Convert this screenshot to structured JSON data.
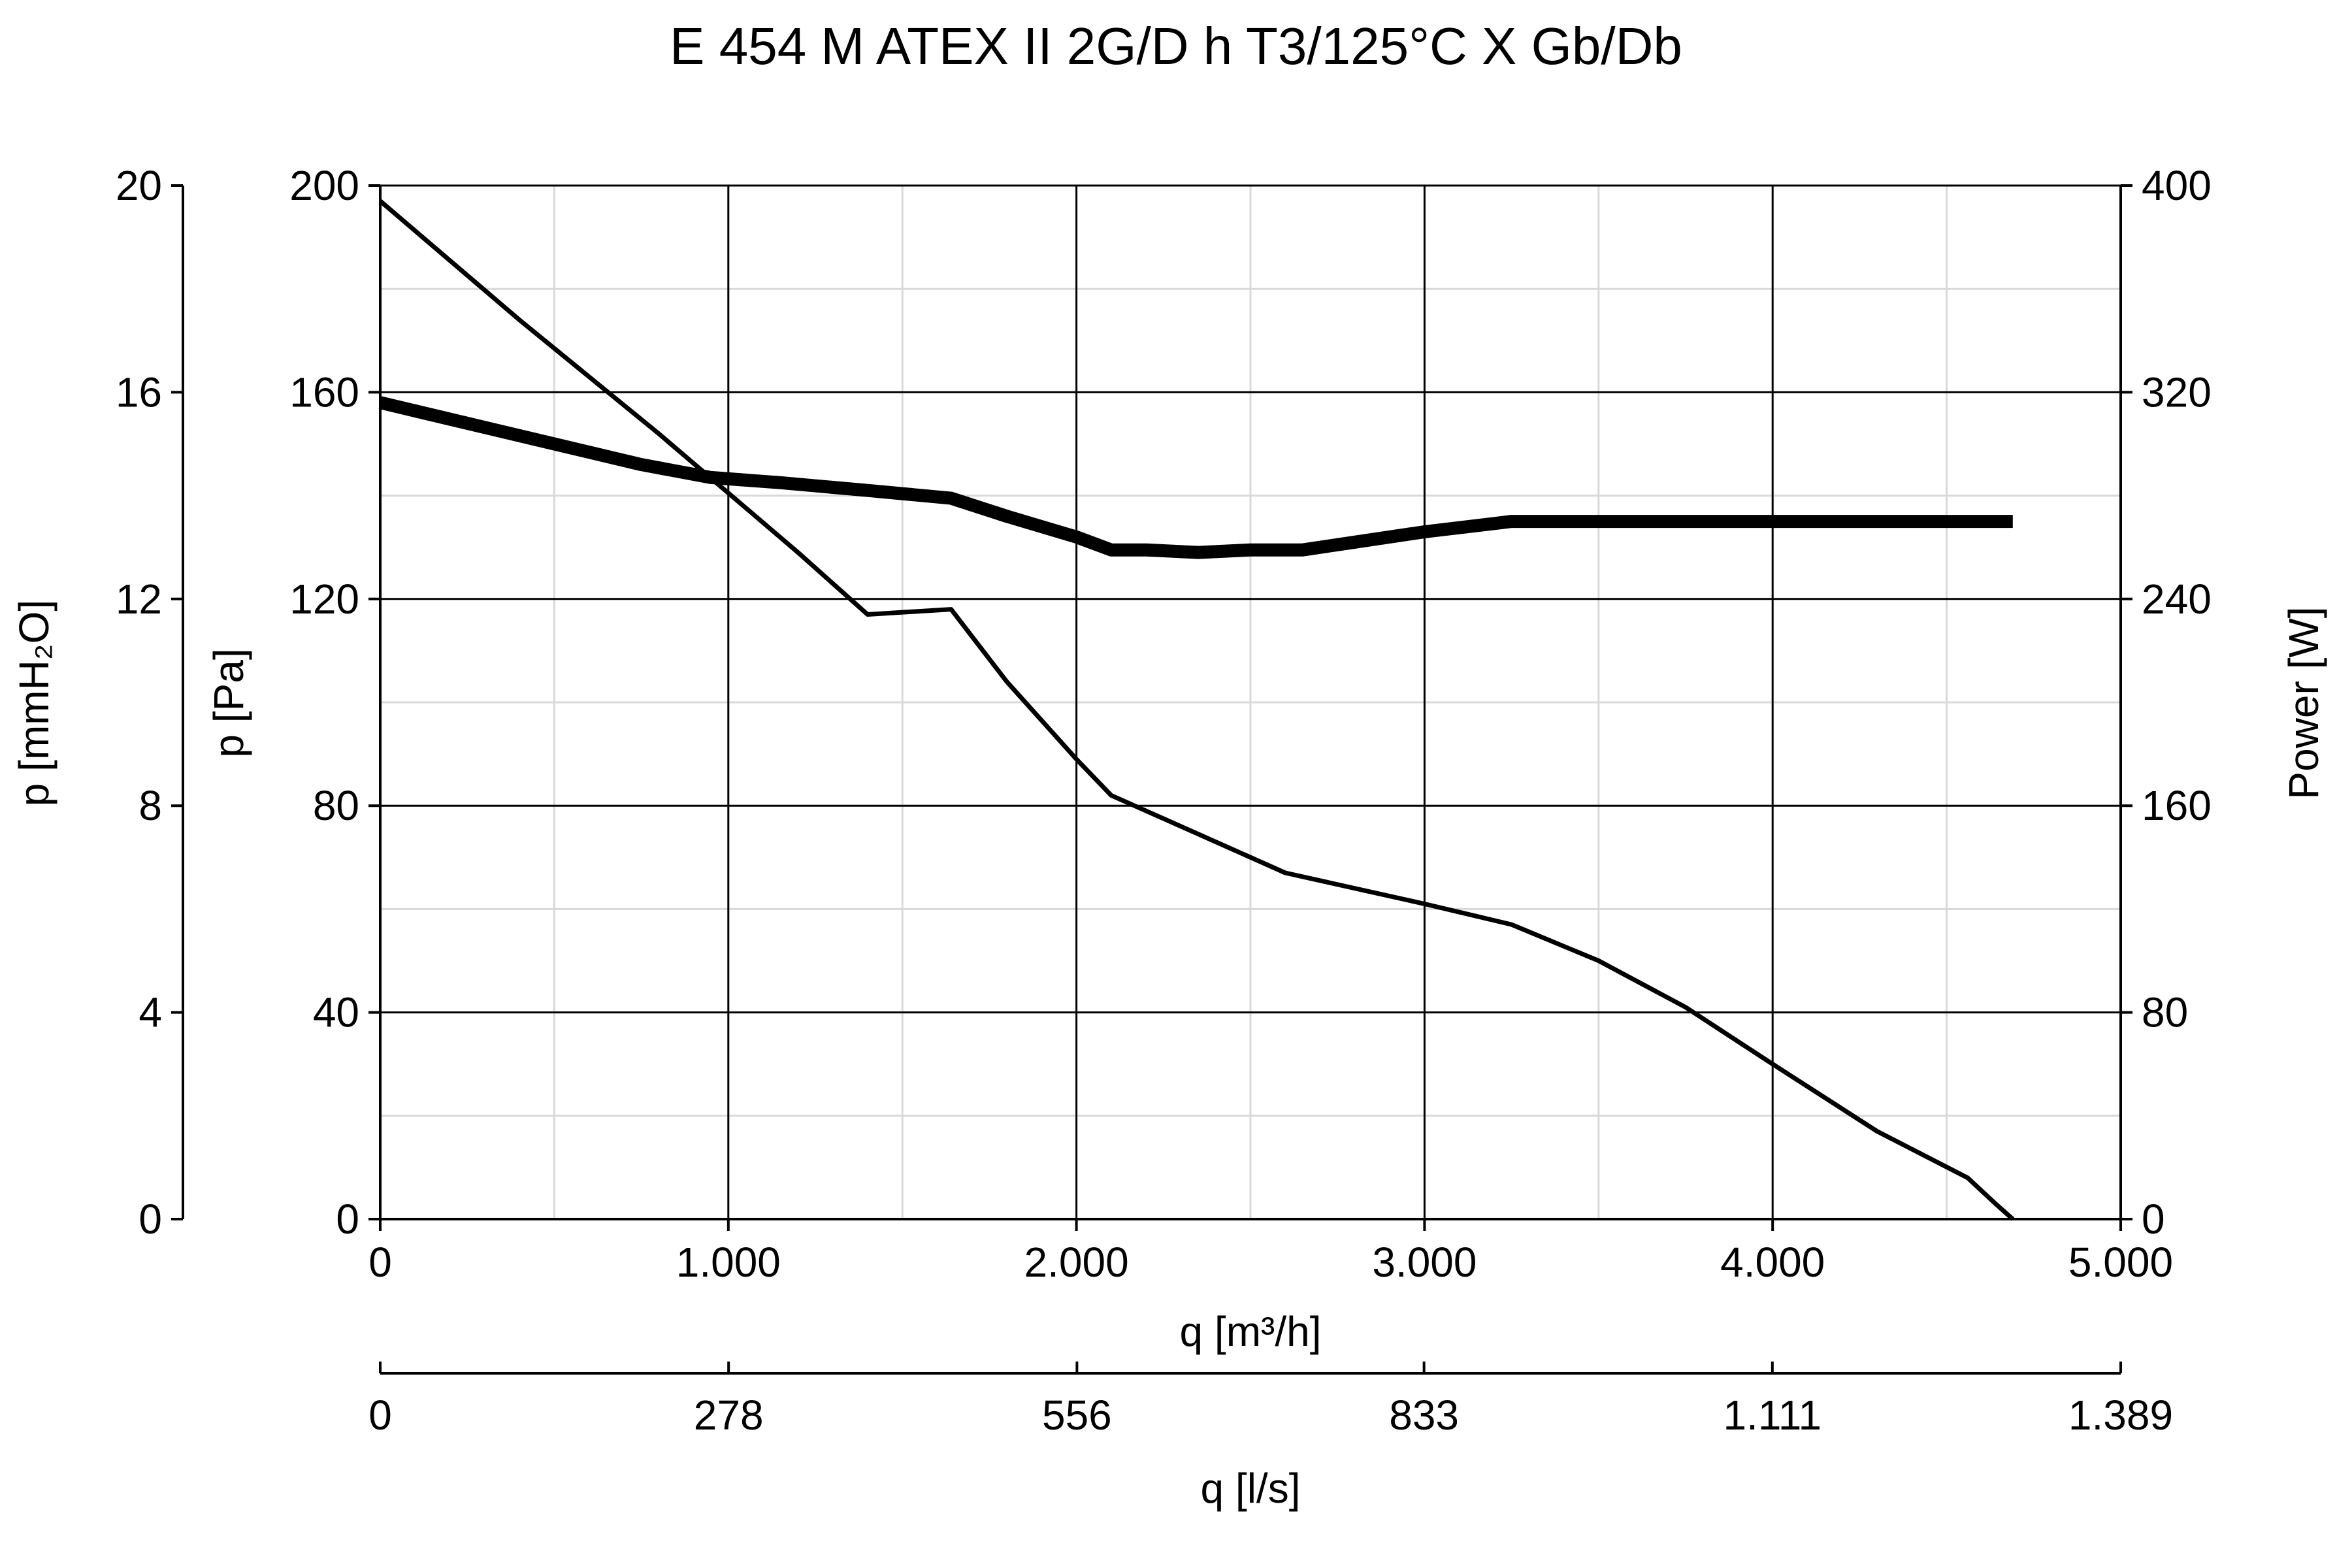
{
  "chart_data": {
    "type": "line",
    "title": "E 454 M ATEX II 2G/D h T3/125°C X Gb/Db",
    "x_axis": {
      "label": "q [m³/h]",
      "range": [
        0,
        5000
      ],
      "ticks": [
        0,
        1000,
        2000,
        3000,
        4000,
        5000
      ],
      "tick_labels": [
        "0",
        "1.000",
        "2.000",
        "3.000",
        "4.000",
        "5.000"
      ]
    },
    "x2_axis": {
      "label": "q [l/s]",
      "range": [
        0,
        1389
      ],
      "ticks": [
        0,
        278,
        556,
        833,
        1111,
        1389
      ],
      "tick_labels": [
        "0",
        "278",
        "556",
        "833",
        "1.111",
        "1.389"
      ]
    },
    "y_axis": {
      "label": "p [Pa]",
      "range": [
        0,
        200
      ],
      "ticks": [
        0,
        40,
        80,
        120,
        160,
        200
      ],
      "tick_labels": [
        "0",
        "40",
        "80",
        "120",
        "160",
        "200"
      ]
    },
    "y_outer_axis": {
      "label": "p [mmH₂O]",
      "range": [
        0,
        20
      ],
      "ticks": [
        0,
        4,
        8,
        12,
        16,
        20
      ],
      "tick_labels": [
        "0",
        "4",
        "8",
        "12",
        "16",
        "20"
      ]
    },
    "y2_axis": {
      "label": "Power [W]",
      "range": [
        0,
        400
      ],
      "ticks": [
        0,
        80,
        160,
        240,
        320,
        400
      ],
      "tick_labels": [
        "0",
        "80",
        "160",
        "240",
        "320",
        "400"
      ]
    },
    "grid": true,
    "series": [
      {
        "axis": "y",
        "style": "thin",
        "x": [
          0,
          400,
          800,
          1200,
          1400,
          1640,
          1800,
          2000,
          2100,
          2300,
          2600,
          3000,
          3250,
          3500,
          3750,
          4000,
          4300,
          4560,
          4640,
          4690
        ],
        "y": [
          197,
          174,
          152,
          129,
          117,
          118,
          104,
          89,
          82,
          76,
          67,
          61,
          57,
          50,
          41,
          30,
          17,
          8,
          3,
          0
        ]
      },
      {
        "axis": "y2",
        "style": "thick",
        "x": [
          0,
          250,
          500,
          750,
          950,
          1150,
          1400,
          1640,
          1800,
          2000,
          2100,
          2200,
          2350,
          2500,
          2650,
          2800,
          3000,
          3250,
          3500,
          4000,
          4690
        ],
        "y": [
          316,
          308,
          300,
          292,
          287,
          285,
          282,
          279,
          272,
          264,
          259,
          259,
          258,
          259,
          259,
          262,
          266,
          270,
          270,
          270,
          270
        ]
      }
    ]
  }
}
